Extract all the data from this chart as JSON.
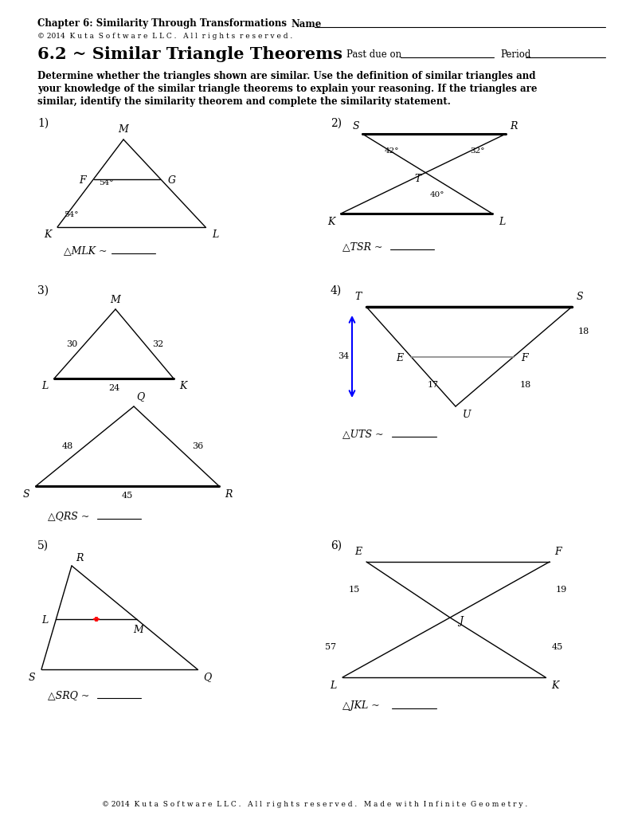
{
  "title_chapter": "Chapter 6: Similarity Through Transformations",
  "title_name": "Name",
  "copyright": "© 2014  K u t a  S o f t w a r e  L L C .   A l l  r i g h t s  r e s e r v e d .",
  "section_title": "6.2 ~ Similar Triangle Theorems",
  "past_due": "Past due on",
  "period": "Period",
  "footer": "© 2014  K u t a  S o f t w a r e  L L C .   A l l  r i g h t s  r e s e r v e d .   M a d e  w i t h  I n f i n i t e  G e o m e t r y .",
  "background": "#ffffff"
}
